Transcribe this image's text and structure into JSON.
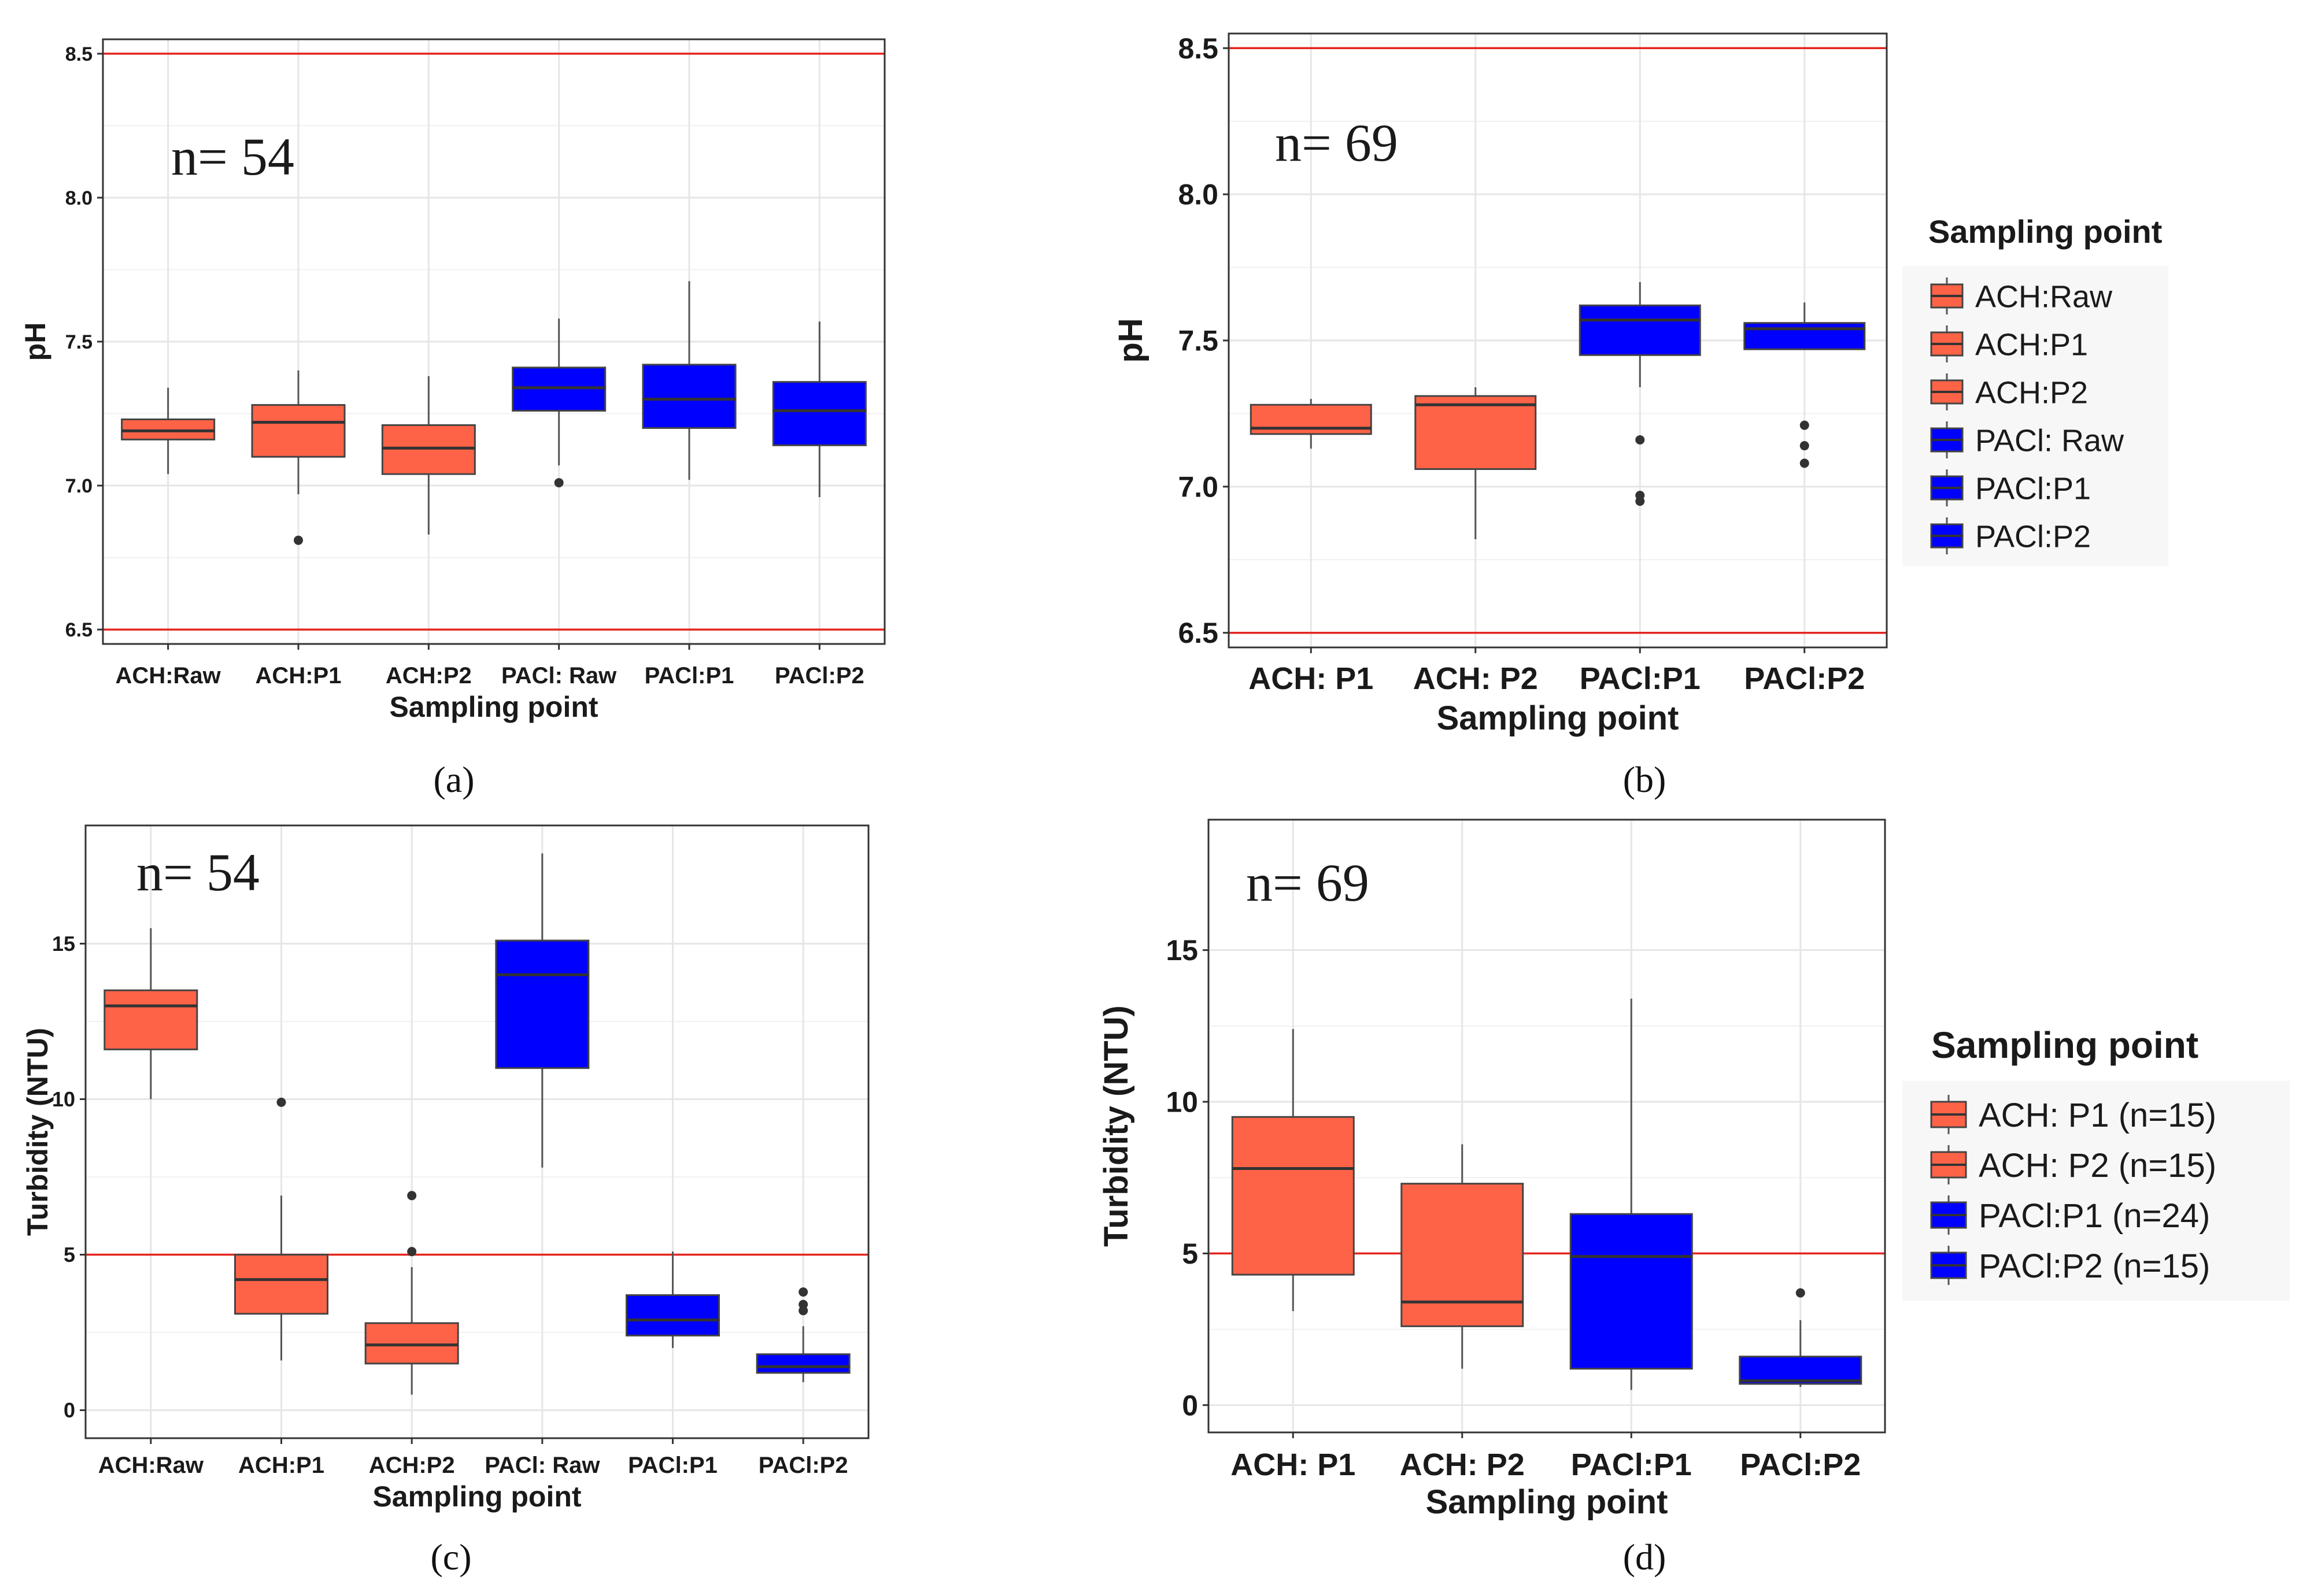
{
  "colors": {
    "ach": "#ff6347",
    "paci": "#0000ff",
    "threshold": "#e3261f",
    "grid": "#e6e6e6",
    "axis": "#333333",
    "median": "#333333"
  },
  "chart_data": [
    {
      "panel": "a",
      "type": "box",
      "caption": "(a)",
      "annotation": "n= 54",
      "ylabel": "pH",
      "xlabel": "Sampling point",
      "ylim": [
        6.45,
        8.55
      ],
      "yticks": [
        6.5,
        7.0,
        7.5,
        8.0,
        8.5
      ],
      "yticklabels": [
        "6.5",
        "7.0",
        "7.5",
        "8.0",
        "8.5"
      ],
      "hlines": [
        6.5,
        8.5
      ],
      "categories": [
        "ACH:Raw",
        "ACH:P1",
        "ACH:P2",
        "PACl: Raw",
        "PACl:P1",
        "PACl:P2"
      ],
      "boxes": [
        {
          "group": "ACH",
          "whislo": 7.04,
          "q1": 7.16,
          "med": 7.19,
          "q3": 7.23,
          "whishi": 7.34,
          "fliers": []
        },
        {
          "group": "ACH",
          "whislo": 6.97,
          "q1": 7.1,
          "med": 7.22,
          "q3": 7.28,
          "whishi": 7.4,
          "fliers": [
            6.81
          ]
        },
        {
          "group": "ACH",
          "whislo": 6.83,
          "q1": 7.04,
          "med": 7.13,
          "q3": 7.21,
          "whishi": 7.38,
          "fliers": []
        },
        {
          "group": "PACl",
          "whislo": 7.07,
          "q1": 7.26,
          "med": 7.34,
          "q3": 7.41,
          "whishi": 7.58,
          "fliers": [
            7.01
          ]
        },
        {
          "group": "PACl",
          "whislo": 7.02,
          "q1": 7.2,
          "med": 7.3,
          "q3": 7.42,
          "whishi": 7.71,
          "fliers": []
        },
        {
          "group": "PACl",
          "whislo": 6.96,
          "q1": 7.14,
          "med": 7.26,
          "q3": 7.36,
          "whishi": 7.57,
          "fliers": []
        }
      ]
    },
    {
      "panel": "b",
      "type": "box",
      "caption": "(b)",
      "annotation": "n= 69",
      "ylabel": "pH",
      "xlabel": "Sampling point",
      "ylim": [
        6.45,
        8.55
      ],
      "yticks": [
        6.5,
        7.0,
        7.5,
        8.0,
        8.5
      ],
      "yticklabels": [
        "6.5",
        "7.0",
        "7.5",
        "8.0",
        "8.5"
      ],
      "hlines": [
        6.5,
        8.5
      ],
      "categories": [
        "ACH: P1",
        "ACH: P2",
        "PACl:P1",
        "PACl:P2"
      ],
      "boxes": [
        {
          "group": "ACH",
          "whislo": 7.13,
          "q1": 7.18,
          "med": 7.2,
          "q3": 7.28,
          "whishi": 7.3,
          "fliers": []
        },
        {
          "group": "ACH",
          "whislo": 6.82,
          "q1": 7.06,
          "med": 7.28,
          "q3": 7.31,
          "whishi": 7.34,
          "fliers": []
        },
        {
          "group": "PACl",
          "whislo": 7.34,
          "q1": 7.45,
          "med": 7.57,
          "q3": 7.62,
          "whishi": 7.7,
          "fliers": [
            7.16,
            6.97,
            6.95
          ]
        },
        {
          "group": "PACl",
          "whislo": 7.47,
          "q1": 7.47,
          "med": 7.54,
          "q3": 7.56,
          "whishi": 7.63,
          "fliers": [
            7.21,
            7.14,
            7.08
          ]
        }
      ],
      "legend": {
        "title": "Sampling point",
        "entries": [
          {
            "label": "ACH:Raw",
            "group": "ACH"
          },
          {
            "label": "ACH:P1",
            "group": "ACH"
          },
          {
            "label": "ACH:P2",
            "group": "ACH"
          },
          {
            "label": "PACl: Raw",
            "group": "PACl"
          },
          {
            "label": "PACl:P1",
            "group": "PACl"
          },
          {
            "label": "PACl:P2",
            "group": "PACl"
          }
        ]
      }
    },
    {
      "panel": "c",
      "type": "box",
      "caption": "(c)",
      "annotation": "n= 54",
      "ylabel": "Turbidity (NTU)",
      "xlabel": "Sampling point",
      "ylim": [
        -0.9,
        18.8
      ],
      "yticks": [
        0,
        5,
        10,
        15
      ],
      "yticklabels": [
        "0",
        "5",
        "10",
        "15"
      ],
      "hlines": [
        5
      ],
      "categories": [
        "ACH:Raw",
        "ACH:P1",
        "ACH:P2",
        "PACl: Raw",
        "PACl:P1",
        "PACl:P2"
      ],
      "boxes": [
        {
          "group": "ACH",
          "whislo": 10.0,
          "q1": 11.6,
          "med": 13.0,
          "q3": 13.5,
          "whishi": 15.5,
          "fliers": []
        },
        {
          "group": "ACH",
          "whislo": 1.6,
          "q1": 3.1,
          "med": 4.2,
          "q3": 5.0,
          "whishi": 6.9,
          "fliers": [
            9.9
          ]
        },
        {
          "group": "ACH",
          "whislo": 0.5,
          "q1": 1.5,
          "med": 2.1,
          "q3": 2.8,
          "whishi": 4.6,
          "fliers": [
            5.1,
            6.9
          ]
        },
        {
          "group": "PACl",
          "whislo": 7.8,
          "q1": 11.0,
          "med": 14.0,
          "q3": 15.1,
          "whishi": 17.9,
          "fliers": []
        },
        {
          "group": "PACl",
          "whislo": 2.0,
          "q1": 2.4,
          "med": 2.9,
          "q3": 3.7,
          "whishi": 5.1,
          "fliers": []
        },
        {
          "group": "PACl",
          "whislo": 0.9,
          "q1": 1.2,
          "med": 1.4,
          "q3": 1.8,
          "whishi": 2.7,
          "fliers": [
            3.2,
            3.4,
            3.8
          ]
        }
      ]
    },
    {
      "panel": "d",
      "type": "box",
      "caption": "(d)",
      "annotation": "n= 69",
      "ylabel": "Turbidity (NTU)",
      "xlabel": "Sampling point",
      "ylim": [
        -0.9,
        19.3
      ],
      "yticks": [
        0,
        5,
        10,
        15
      ],
      "yticklabels": [
        "0",
        "5",
        "10",
        "15"
      ],
      "hlines": [
        5
      ],
      "categories": [
        "ACH: P1",
        "ACH: P2",
        "PACl:P1",
        "PACl:P2"
      ],
      "boxes": [
        {
          "group": "ACH",
          "whislo": 3.1,
          "q1": 4.3,
          "med": 7.8,
          "q3": 9.5,
          "whishi": 12.4,
          "fliers": []
        },
        {
          "group": "ACH",
          "whislo": 1.2,
          "q1": 2.6,
          "med": 3.4,
          "q3": 7.3,
          "whishi": 8.6,
          "fliers": []
        },
        {
          "group": "PACl",
          "whislo": 0.5,
          "q1": 1.2,
          "med": 4.9,
          "q3": 6.3,
          "whishi": 13.4,
          "fliers": []
        },
        {
          "group": "PACl",
          "whislo": 0.6,
          "q1": 0.7,
          "med": 0.8,
          "q3": 1.6,
          "whishi": 2.8,
          "fliers": [
            3.7
          ]
        }
      ],
      "legend": {
        "title": "Sampling point",
        "entries": [
          {
            "label": "ACH: P1 (n=15)",
            "group": "ACH"
          },
          {
            "label": "ACH: P2 (n=15)",
            "group": "ACH"
          },
          {
            "label": "PACl:P1 (n=24)",
            "group": "PACl"
          },
          {
            "label": "PACl:P2 (n=15)",
            "group": "PACl"
          }
        ]
      }
    }
  ]
}
